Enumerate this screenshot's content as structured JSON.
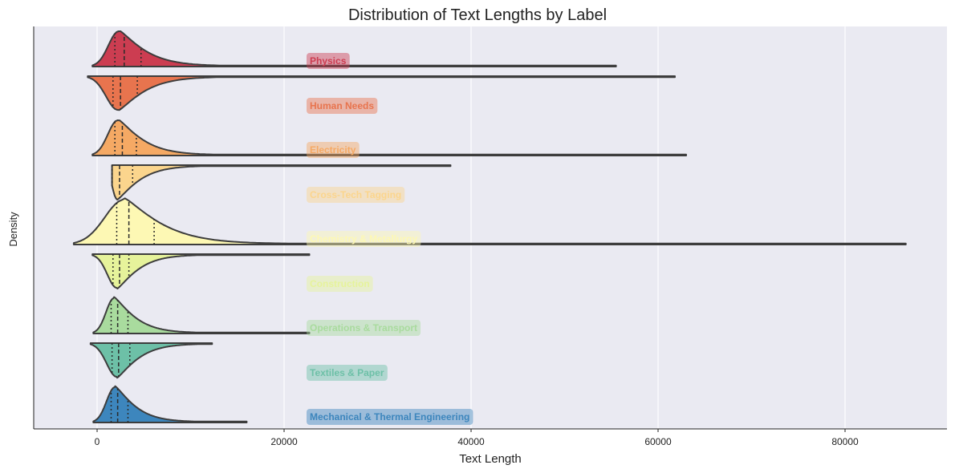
{
  "chart_data": {
    "type": "violin",
    "title": "Distribution of Text Lengths by Label",
    "xlabel": "Text Length",
    "ylabel": "Density",
    "xlim": [
      -7000,
      91000
    ],
    "xticks": [
      0,
      20000,
      40000,
      60000,
      80000
    ],
    "xtick_labels": [
      "0",
      "20000",
      "40000",
      "60000",
      "80000"
    ],
    "grid": "vertical",
    "background": "#eaeaf2",
    "series": [
      {
        "name": "Physics",
        "color": "#cc3d51",
        "direction": "up",
        "min": -500,
        "max": 55500,
        "q1": 1900,
        "median": 2900,
        "q3": 4700,
        "mode": 2300,
        "tail": 3200
      },
      {
        "name": "Human Needs",
        "color": "#e8744e",
        "direction": "down",
        "min": -1000,
        "max": 61800,
        "q1": 1700,
        "median": 2500,
        "q3": 4300,
        "mode": 2200,
        "tail": 3200
      },
      {
        "name": "Electricity",
        "color": "#f5a964",
        "direction": "up",
        "min": -500,
        "max": 63000,
        "q1": 1900,
        "median": 2700,
        "q3": 4200,
        "mode": 2200,
        "tail": 3000
      },
      {
        "name": "Cross-Tech Tagging",
        "color": "#fbd58d",
        "direction": "down",
        "min": 1600,
        "max": 37800,
        "q1": 1600,
        "median": 2400,
        "q3": 3800,
        "mode": 2100,
        "tail": 2700
      },
      {
        "name": "Chemistry & Metallurgy",
        "color": "#fdf8b4",
        "direction": "up",
        "min": -2500,
        "max": 86500,
        "q1": 2100,
        "median": 3400,
        "q3": 6100,
        "mode": 2900,
        "tail": 4600
      },
      {
        "name": "Construction",
        "color": "#e6f39b",
        "direction": "down",
        "min": -500,
        "max": 22700,
        "q1": 1700,
        "median": 2400,
        "q3": 3400,
        "mode": 2100,
        "tail": 2600
      },
      {
        "name": "Operations & Transport",
        "color": "#a9db9e",
        "direction": "up",
        "min": -400,
        "max": 22700,
        "q1": 1500,
        "median": 2200,
        "q3": 3300,
        "mode": 1800,
        "tail": 2600
      },
      {
        "name": "Textiles & Paper",
        "color": "#6dc0a7",
        "direction": "down",
        "min": -700,
        "max": 12300,
        "q1": 1600,
        "median": 2300,
        "q3": 3500,
        "mode": 2100,
        "tail": 2600
      },
      {
        "name": "Mechanical & Thermal Engineering",
        "color": "#3d86bd",
        "direction": "up",
        "min": -400,
        "max": 16000,
        "q1": 1500,
        "median": 2200,
        "q3": 3300,
        "mode": 1900,
        "tail": 2500
      }
    ]
  }
}
